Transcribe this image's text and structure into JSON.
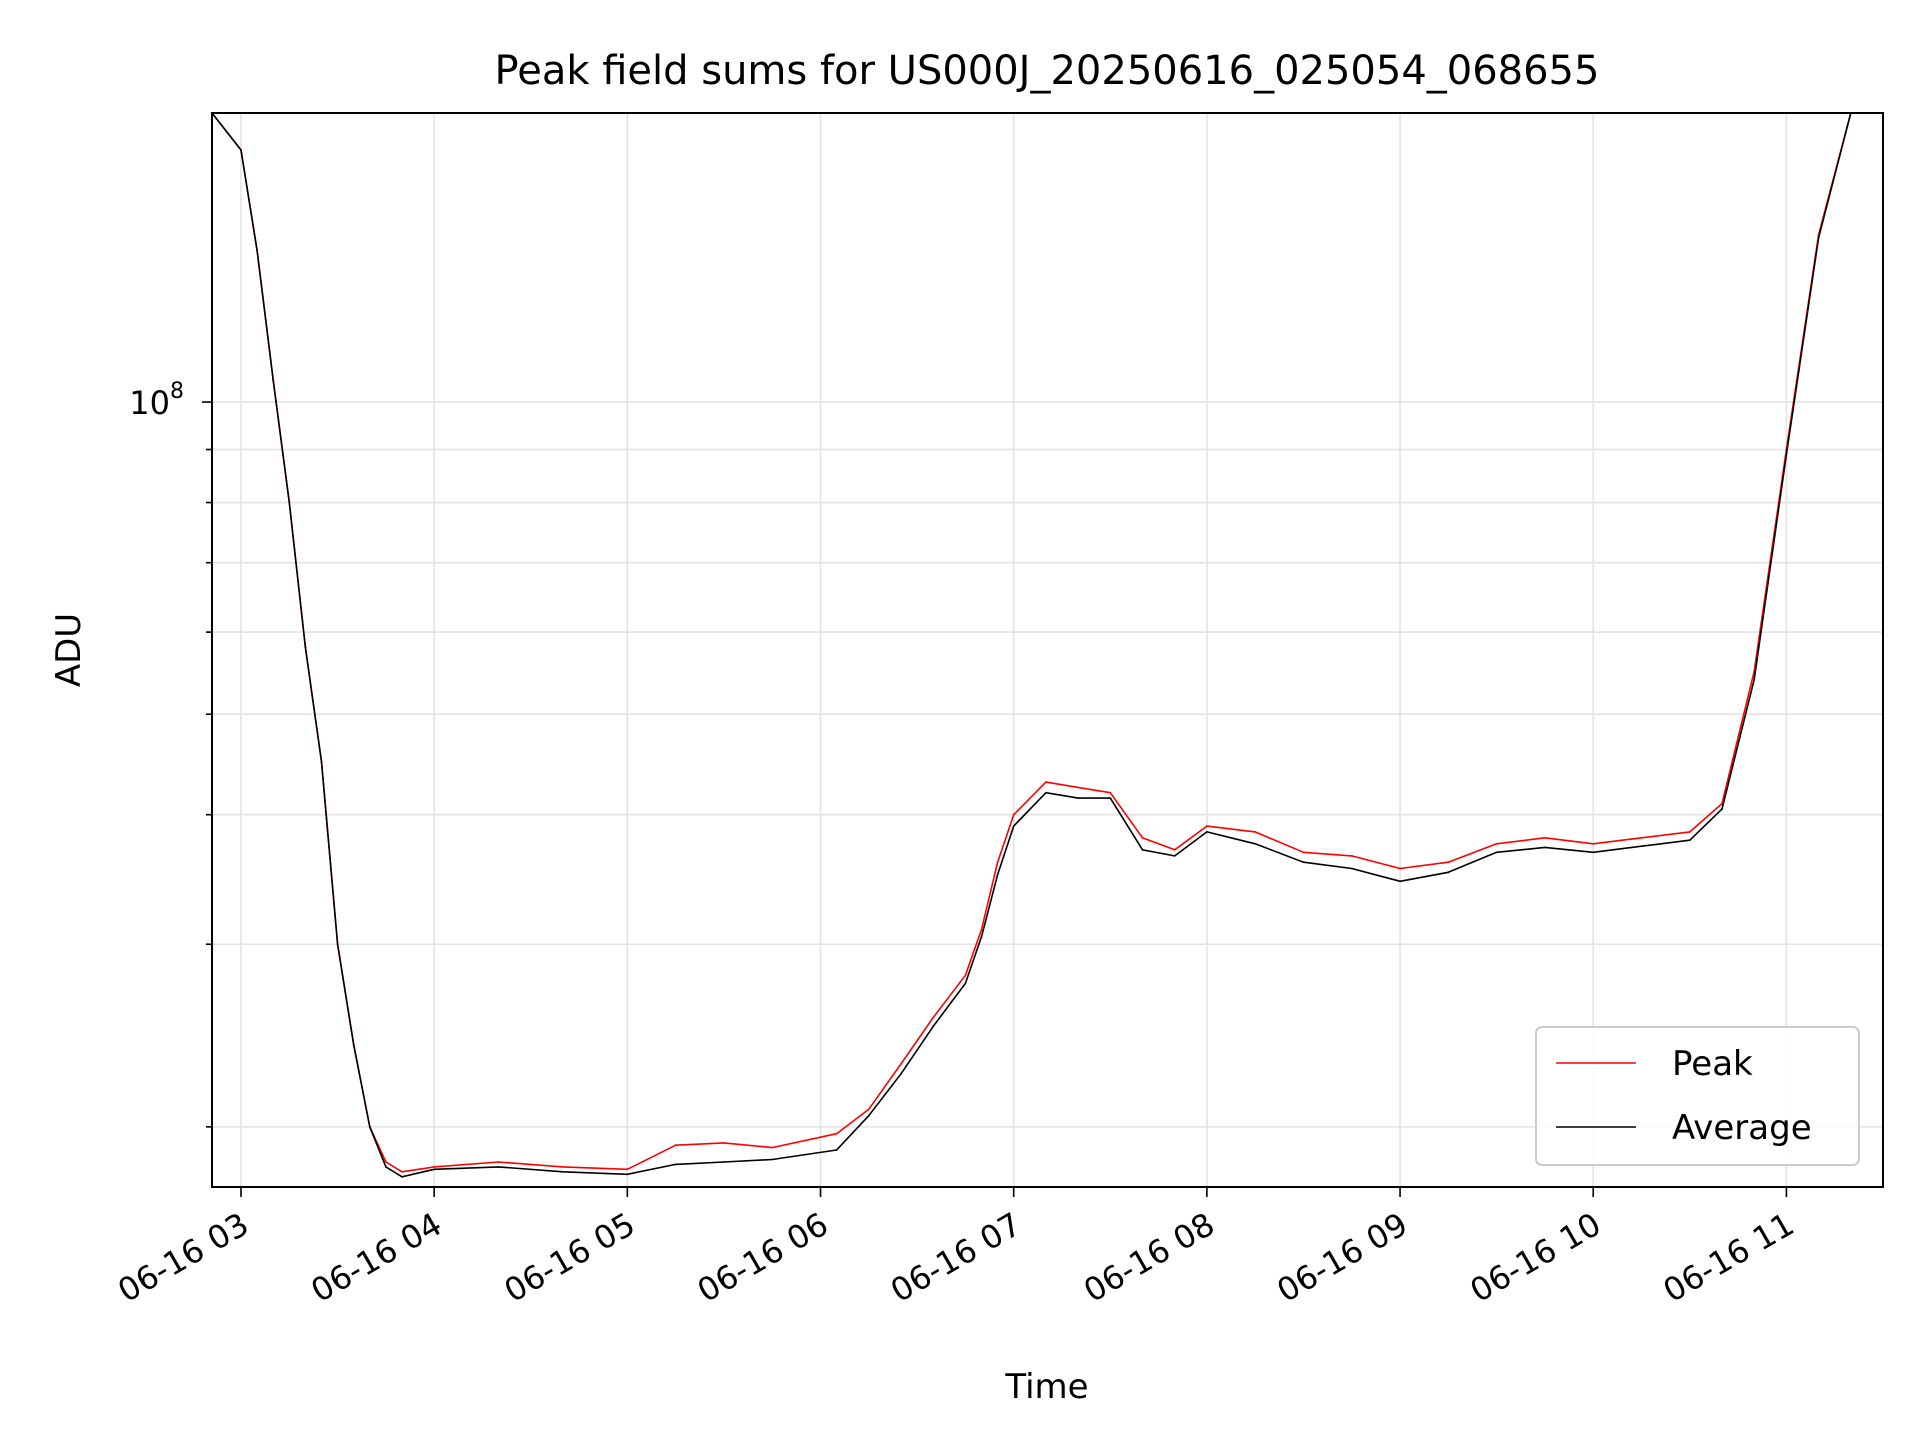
{
  "chart_data": {
    "type": "line",
    "title": "Peak field sums for US000J_20250616_025054_068655",
    "xlabel": "Time",
    "ylabel": "ADU",
    "x_ticks": [
      "06-16 03",
      "06-16 04",
      "06-16 05",
      "06-16 06",
      "06-16 07",
      "06-16 08",
      "06-16 09",
      "06-16 10",
      "06-16 11"
    ],
    "x_range": [
      "06-16 02:51",
      "06-16 11:30"
    ],
    "y_scale": "log",
    "y_ticks": [
      {
        "base": "10",
        "exp": "8",
        "value": 100000000
      }
    ],
    "ylim": [
      17500000,
      190000000
    ],
    "grid": true,
    "legend": {
      "position": "lower-right",
      "entries": [
        "Peak",
        "Average"
      ]
    },
    "series": [
      {
        "name": "Peak",
        "color": "#ff0000",
        "points": [
          [
            "06-16 02:51",
            190000000
          ],
          [
            "06-16 03:00",
            175000000
          ],
          [
            "06-16 03:05",
            140000000
          ],
          [
            "06-16 03:10",
            105000000
          ],
          [
            "06-16 03:15",
            80000000
          ],
          [
            "06-16 03:20",
            58000000
          ],
          [
            "06-16 03:25",
            45000000
          ],
          [
            "06-16 03:30",
            30000000
          ],
          [
            "06-16 03:35",
            24000000
          ],
          [
            "06-16 03:40",
            20000000
          ],
          [
            "06-16 03:45",
            18500000
          ],
          [
            "06-16 03:50",
            18100000
          ],
          [
            "06-16 04:00",
            18300000
          ],
          [
            "06-16 04:20",
            18500000
          ],
          [
            "06-16 04:40",
            18300000
          ],
          [
            "06-16 05:00",
            18200000
          ],
          [
            "06-16 05:15",
            19200000
          ],
          [
            "06-16 05:30",
            19300000
          ],
          [
            "06-16 05:45",
            19100000
          ],
          [
            "06-16 06:05",
            19700000
          ],
          [
            "06-16 06:15",
            20800000
          ],
          [
            "06-16 06:25",
            23000000
          ],
          [
            "06-16 06:35",
            25500000
          ],
          [
            "06-16 06:45",
            28000000
          ],
          [
            "06-16 06:50",
            31000000
          ],
          [
            "06-16 06:55",
            36000000
          ],
          [
            "06-16 07:00",
            40000000
          ],
          [
            "06-16 07:10",
            43000000
          ],
          [
            "06-16 07:20",
            42500000
          ],
          [
            "06-16 07:30",
            42000000
          ],
          [
            "06-16 07:40",
            38000000
          ],
          [
            "06-16 07:50",
            37000000
          ],
          [
            "06-16 08:00",
            39000000
          ],
          [
            "06-16 08:15",
            38500000
          ],
          [
            "06-16 08:30",
            36800000
          ],
          [
            "06-16 08:45",
            36500000
          ],
          [
            "06-16 09:00",
            35500000
          ],
          [
            "06-16 09:15",
            36000000
          ],
          [
            "06-16 09:30",
            37500000
          ],
          [
            "06-16 09:45",
            38000000
          ],
          [
            "06-16 10:00",
            37500000
          ],
          [
            "06-16 10:15",
            38000000
          ],
          [
            "06-16 10:30",
            38500000
          ],
          [
            "06-16 10:40",
            41000000
          ],
          [
            "06-16 10:50",
            55000000
          ],
          [
            "06-16 11:00",
            90000000
          ],
          [
            "06-16 11:10",
            145000000
          ],
          [
            "06-16 11:20",
            190000000
          ]
        ]
      },
      {
        "name": "Average",
        "color": "#000000",
        "points": [
          [
            "06-16 02:51",
            190000000
          ],
          [
            "06-16 03:00",
            175000000
          ],
          [
            "06-16 03:05",
            140000000
          ],
          [
            "06-16 03:10",
            105000000
          ],
          [
            "06-16 03:15",
            80000000
          ],
          [
            "06-16 03:20",
            58000000
          ],
          [
            "06-16 03:25",
            45000000
          ],
          [
            "06-16 03:30",
            30000000
          ],
          [
            "06-16 03:35",
            24000000
          ],
          [
            "06-16 03:40",
            20000000
          ],
          [
            "06-16 03:45",
            18300000
          ],
          [
            "06-16 03:50",
            17900000
          ],
          [
            "06-16 04:00",
            18200000
          ],
          [
            "06-16 04:20",
            18300000
          ],
          [
            "06-16 04:40",
            18100000
          ],
          [
            "06-16 05:00",
            18000000
          ],
          [
            "06-16 05:15",
            18400000
          ],
          [
            "06-16 05:30",
            18500000
          ],
          [
            "06-16 05:45",
            18600000
          ],
          [
            "06-16 06:05",
            19000000
          ],
          [
            "06-16 06:15",
            20500000
          ],
          [
            "06-16 06:25",
            22500000
          ],
          [
            "06-16 06:35",
            25000000
          ],
          [
            "06-16 06:45",
            27500000
          ],
          [
            "06-16 06:50",
            30500000
          ],
          [
            "06-16 06:55",
            35000000
          ],
          [
            "06-16 07:00",
            39000000
          ],
          [
            "06-16 07:10",
            42000000
          ],
          [
            "06-16 07:20",
            41500000
          ],
          [
            "06-16 07:30",
            41500000
          ],
          [
            "06-16 07:40",
            37000000
          ],
          [
            "06-16 07:50",
            36500000
          ],
          [
            "06-16 08:00",
            38500000
          ],
          [
            "06-16 08:15",
            37500000
          ],
          [
            "06-16 08:30",
            36000000
          ],
          [
            "06-16 08:45",
            35500000
          ],
          [
            "06-16 09:00",
            34500000
          ],
          [
            "06-16 09:15",
            35200000
          ],
          [
            "06-16 09:30",
            36800000
          ],
          [
            "06-16 09:45",
            37200000
          ],
          [
            "06-16 10:00",
            36800000
          ],
          [
            "06-16 10:15",
            37300000
          ],
          [
            "06-16 10:30",
            37800000
          ],
          [
            "06-16 10:40",
            40500000
          ],
          [
            "06-16 10:50",
            54000000
          ],
          [
            "06-16 11:00",
            89000000
          ],
          [
            "06-16 11:10",
            144000000
          ],
          [
            "06-16 11:20",
            190000000
          ]
        ]
      }
    ]
  }
}
